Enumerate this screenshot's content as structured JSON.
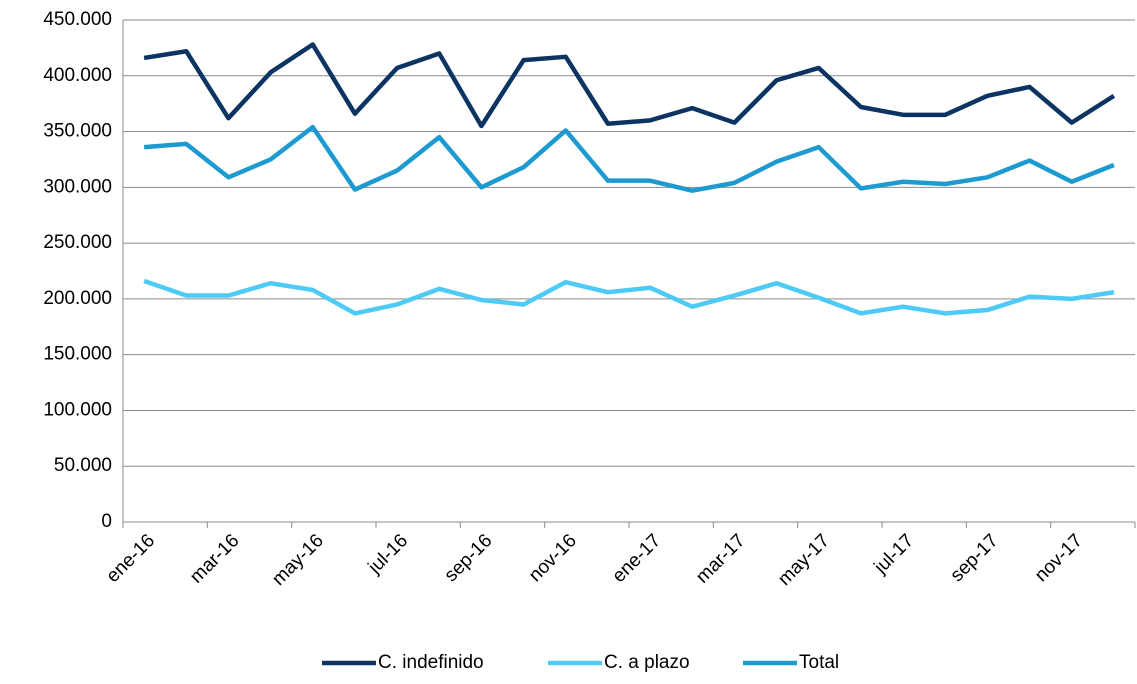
{
  "chart_data": {
    "type": "line",
    "categories": [
      "ene-16",
      null,
      "mar-16",
      null,
      "may-16",
      null,
      "jul-16",
      null,
      "sep-16",
      null,
      "nov-16",
      null,
      "ene-17",
      null,
      "mar-17",
      null,
      "may-17",
      null,
      "jul-17",
      null,
      "sep-17",
      null,
      "nov-17",
      null
    ],
    "series": [
      {
        "name": "C. indefinido",
        "color": "#0c3462",
        "values": [
          416000,
          422000,
          362000,
          403000,
          428000,
          366000,
          407000,
          420000,
          355000,
          414000,
          417000,
          357000,
          360000,
          371000,
          358000,
          396000,
          407000,
          372000,
          365000,
          365000,
          382000,
          390000,
          358000,
          382000
        ]
      },
      {
        "name": "C. a plazo",
        "color": "#4dcaf5",
        "values": [
          216000,
          203000,
          203000,
          214000,
          208000,
          187000,
          195000,
          209000,
          199000,
          195000,
          215000,
          206000,
          210000,
          193000,
          203000,
          214000,
          201000,
          187000,
          193000,
          187000,
          190000,
          202000,
          200000,
          206000
        ]
      },
      {
        "name": "Total",
        "color": "#1d9bd0",
        "values": [
          336000,
          339000,
          309000,
          325000,
          354000,
          298000,
          315000,
          345000,
          300000,
          318000,
          351000,
          306000,
          306000,
          297000,
          304000,
          323000,
          336000,
          299000,
          305000,
          303000,
          309000,
          324000,
          305000,
          320000
        ]
      }
    ],
    "ylim": [
      0,
      450000
    ],
    "yticks": [
      0,
      {
        "value": 50000,
        "label": "50.000"
      },
      {
        "value": 100000,
        "label": "100.000"
      },
      {
        "value": 150000,
        "label": "150.000"
      },
      {
        "value": 200000,
        "label": "200.000"
      },
      {
        "value": 250000,
        "label": "250.000"
      },
      {
        "value": 300000,
        "label": "300.000"
      },
      {
        "value": 350000,
        "label": "350.000"
      },
      {
        "value": 400000,
        "label": "400.000"
      },
      {
        "value": 450000,
        "label": "450.000"
      }
    ],
    "grid": true,
    "legend": "bottom"
  }
}
